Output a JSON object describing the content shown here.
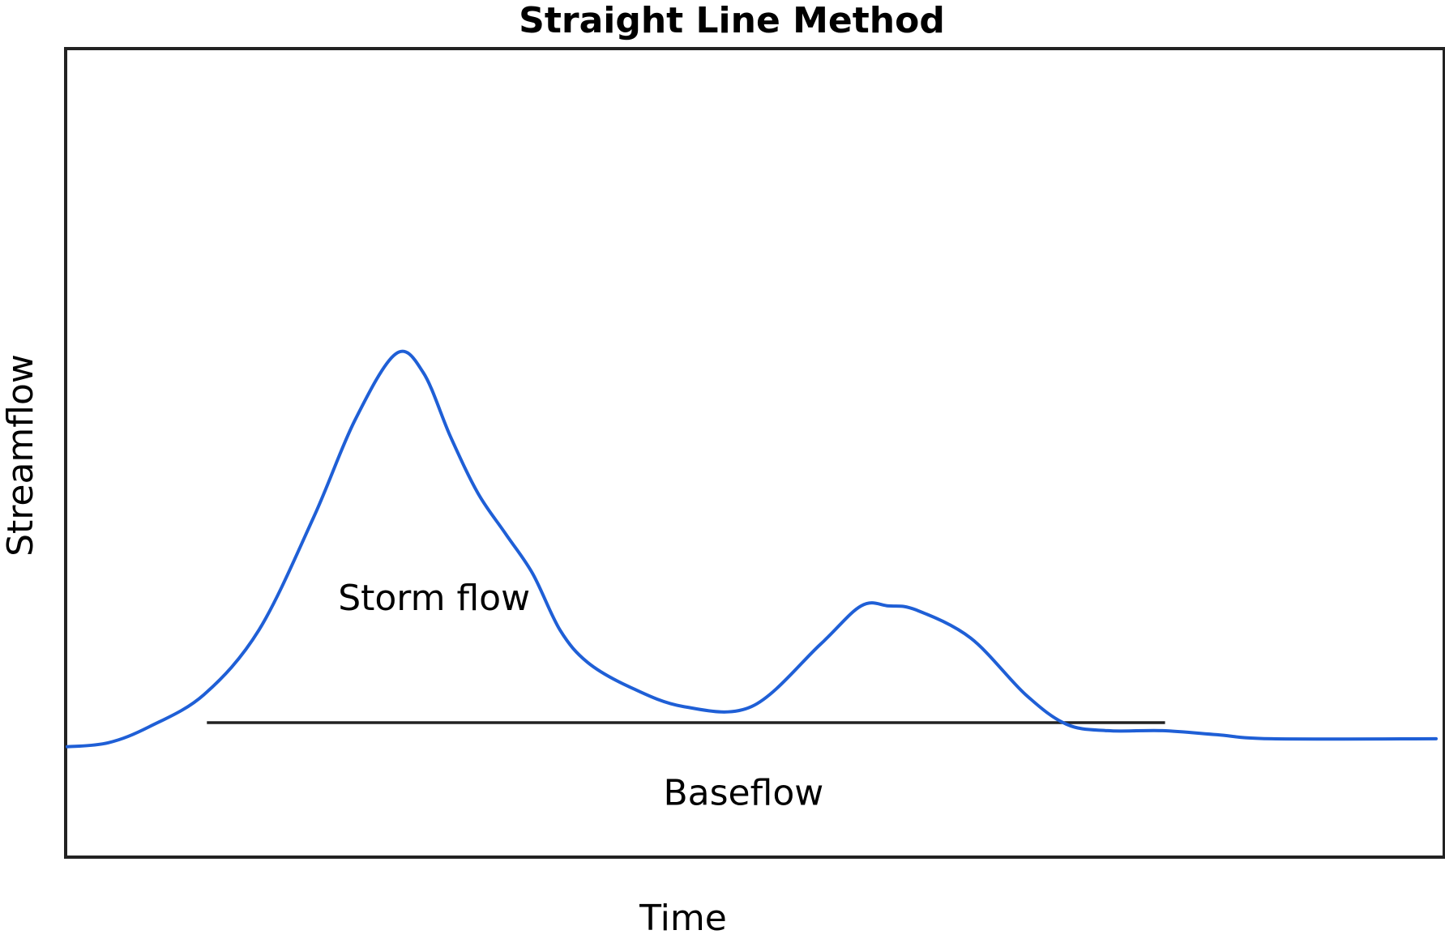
{
  "chart_data": {
    "type": "line",
    "title": "Straight Line Method",
    "xlabel": "Time",
    "ylabel": "Streamflow",
    "xlim": [
      0,
      100
    ],
    "ylim": [
      0,
      100
    ],
    "grid": false,
    "series": [
      {
        "color": "#1f5fd6",
        "x": [
          0,
          3,
          6,
          10,
          14,
          18,
          21,
          24,
          26,
          28,
          30,
          32,
          34,
          36,
          38,
          41,
          45,
          50,
          55,
          58,
          60,
          62,
          66,
          70,
          73,
          76,
          80,
          84,
          88,
          100
        ],
        "y": [
          13.5,
          14,
          16,
          20,
          28,
          42,
          54,
          62.3,
          60,
          52,
          45,
          40,
          35,
          28,
          24,
          21,
          18.5,
          18.5,
          26.2,
          31,
          31,
          30.5,
          27,
          20,
          16.3,
          15.5,
          15.5,
          15,
          14.5,
          14.5
        ]
      }
    ],
    "baseline": {
      "color": "#222222",
      "x": [
        10.2,
        80.2
      ],
      "y": [
        16.5,
        16.5
      ]
    },
    "annotations": [
      {
        "text": "Storm flow",
        "x": 26.8,
        "y": 30.5
      },
      {
        "text": "Baseflow",
        "x": 49.4,
        "y": 6.3
      }
    ]
  }
}
